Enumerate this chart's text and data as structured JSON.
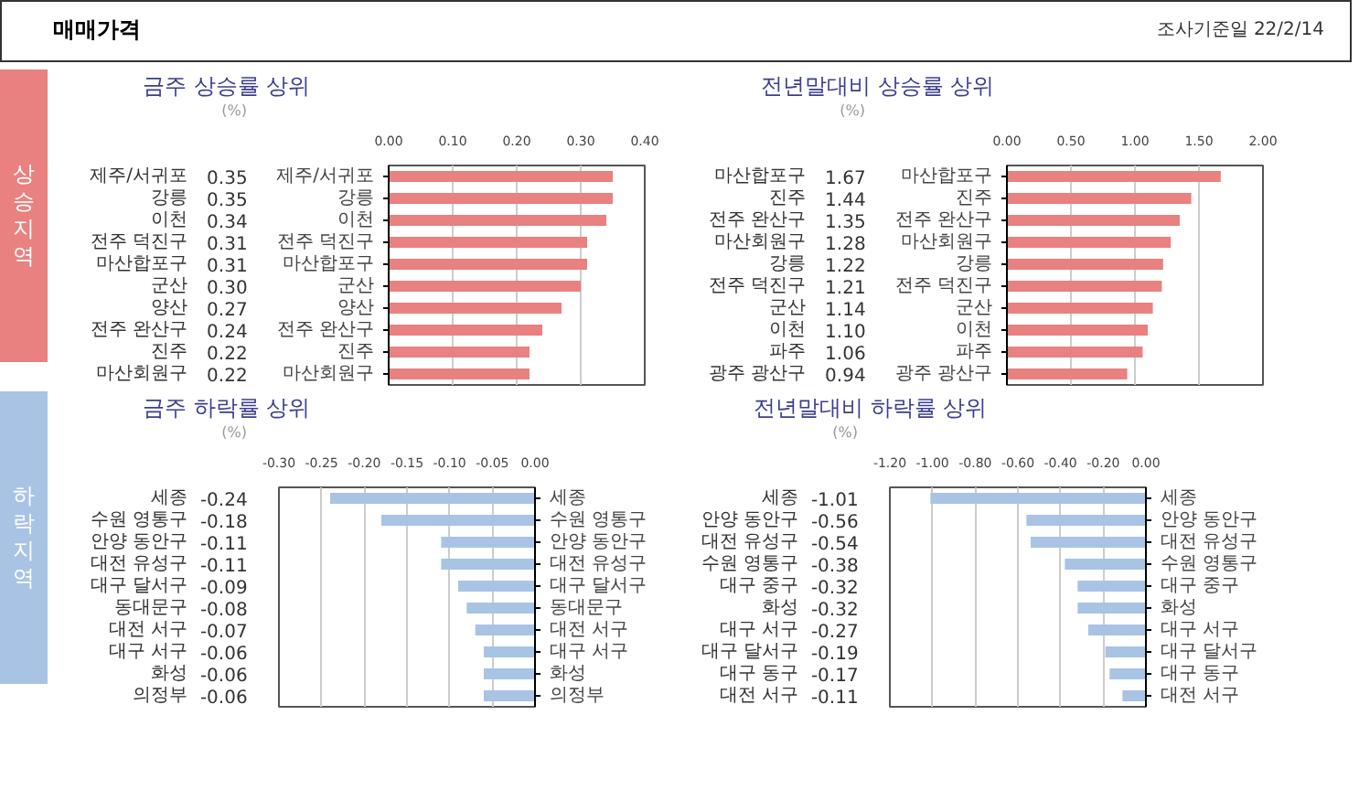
{
  "chart_data": [
    {
      "type": "other",
      "title": "매매가격",
      "annotations": [
        "조사기준일 22/2/14",
        "상승지역",
        "하락지역"
      ]
    },
    {
      "type": "bar",
      "orientation": "horizontal",
      "title": "금주 상승률 상위",
      "categories": [
        "제주/서귀포",
        "강릉",
        "이천",
        "전주 덕진구",
        "마산합포구",
        "군산",
        "양산",
        "전주 완산구",
        "진주",
        "마산회원구"
      ],
      "values": [
        0.35,
        0.35,
        0.34,
        0.31,
        0.31,
        0.3,
        0.27,
        0.24,
        0.22,
        0.22
      ],
      "value_labels": [
        "0.35",
        "0.35",
        "0.34",
        "0.31",
        "0.31",
        "0.30",
        "0.27",
        "0.24",
        "0.22",
        "0.22"
      ],
      "color": "#e8817f",
      "xlim": [
        0,
        0.4
      ],
      "xticks": [
        {
          "value": 0,
          "label": "0.00"
        },
        {
          "value": 0.1,
          "label": "0.10"
        },
        {
          "value": 0.2,
          "label": "0.20"
        },
        {
          "value": 0.3,
          "label": "0.30"
        },
        {
          "value": 0.4,
          "label": "0.40"
        }
      ],
      "grid": "x",
      "annotations": [
        "(%)"
      ]
    },
    {
      "type": "bar",
      "orientation": "horizontal",
      "title": "전년말대비 상승률 상위",
      "categories": [
        "마산합포구",
        "진주",
        "전주 완산구",
        "마산회원구",
        "강릉",
        "전주 덕진구",
        "군산",
        "이천",
        "파주",
        "광주 광산구"
      ],
      "values": [
        1.67,
        1.44,
        1.35,
        1.28,
        1.22,
        1.21,
        1.14,
        1.1,
        1.06,
        0.94
      ],
      "value_labels": [
        "1.67",
        "1.44",
        "1.35",
        "1.28",
        "1.22",
        "1.21",
        "1.14",
        "1.10",
        "1.06",
        "0.94"
      ],
      "color": "#e8817f",
      "xlim": [
        0,
        2
      ],
      "xticks": [
        {
          "value": 0,
          "label": "0.00"
        },
        {
          "value": 0.5,
          "label": "0.50"
        },
        {
          "value": 1,
          "label": "1.00"
        },
        {
          "value": 1.5,
          "label": "1.50"
        },
        {
          "value": 2,
          "label": "2.00"
        }
      ],
      "grid": "x",
      "annotations": [
        "(%)"
      ]
    },
    {
      "type": "bar",
      "orientation": "horizontal",
      "title": "금주 하락률 상위",
      "categories": [
        "세종",
        "수원 영통구",
        "안양 동안구",
        "대전 유성구",
        "대구 달서구",
        "동대문구",
        "대전 서구",
        "대구 서구",
        "화성",
        "의정부"
      ],
      "values": [
        -0.24,
        -0.18,
        -0.11,
        -0.11,
        -0.09,
        -0.08,
        -0.07,
        -0.06,
        -0.06,
        -0.06
      ],
      "value_labels": [
        "-0.24",
        "-0.18",
        "-0.11",
        "-0.11",
        "-0.09",
        "-0.08",
        "-0.07",
        "-0.06",
        "-0.06",
        "-0.06"
      ],
      "color": "#a9c3e5",
      "xlim": [
        -0.3,
        0
      ],
      "xticks": [
        {
          "value": -0.3,
          "label": "-0.30"
        },
        {
          "value": -0.25,
          "label": "-0.25"
        },
        {
          "value": -0.2,
          "label": "-0.20"
        },
        {
          "value": -0.15,
          "label": "-0.15"
        },
        {
          "value": -0.1,
          "label": "-0.10"
        },
        {
          "value": -0.05,
          "label": "-0.05"
        },
        {
          "value": 0,
          "label": "0.00"
        }
      ],
      "grid": "x",
      "annotations": [
        "(%)"
      ]
    },
    {
      "type": "bar",
      "orientation": "horizontal",
      "title": "전년말대비 하락률 상위",
      "categories": [
        "세종",
        "안양 동안구",
        "대전 유성구",
        "수원 영통구",
        "대구 중구",
        "화성",
        "대구 서구",
        "대구 달서구",
        "대구 동구",
        "대전 서구"
      ],
      "values": [
        -1.01,
        -0.56,
        -0.54,
        -0.38,
        -0.32,
        -0.32,
        -0.27,
        -0.19,
        -0.17,
        -0.11
      ],
      "value_labels": [
        "-1.01",
        "-0.56",
        "-0.54",
        "-0.38",
        "-0.32",
        "-0.32",
        "-0.27",
        "-0.19",
        "-0.17",
        "-0.11"
      ],
      "color": "#a9c3e5",
      "xlim": [
        -1.2,
        0
      ],
      "xticks": [
        {
          "value": -1.2,
          "label": "-1.20"
        },
        {
          "value": -1,
          "label": "-1.00"
        },
        {
          "value": -0.8,
          "label": "-0.80"
        },
        {
          "value": -0.6,
          "label": "-0.60"
        },
        {
          "value": -0.4,
          "label": "-0.40"
        },
        {
          "value": -0.2,
          "label": "-0.20"
        },
        {
          "value": 0,
          "label": "0.00"
        }
      ],
      "grid": "x",
      "annotations": [
        "(%)"
      ]
    }
  ]
}
